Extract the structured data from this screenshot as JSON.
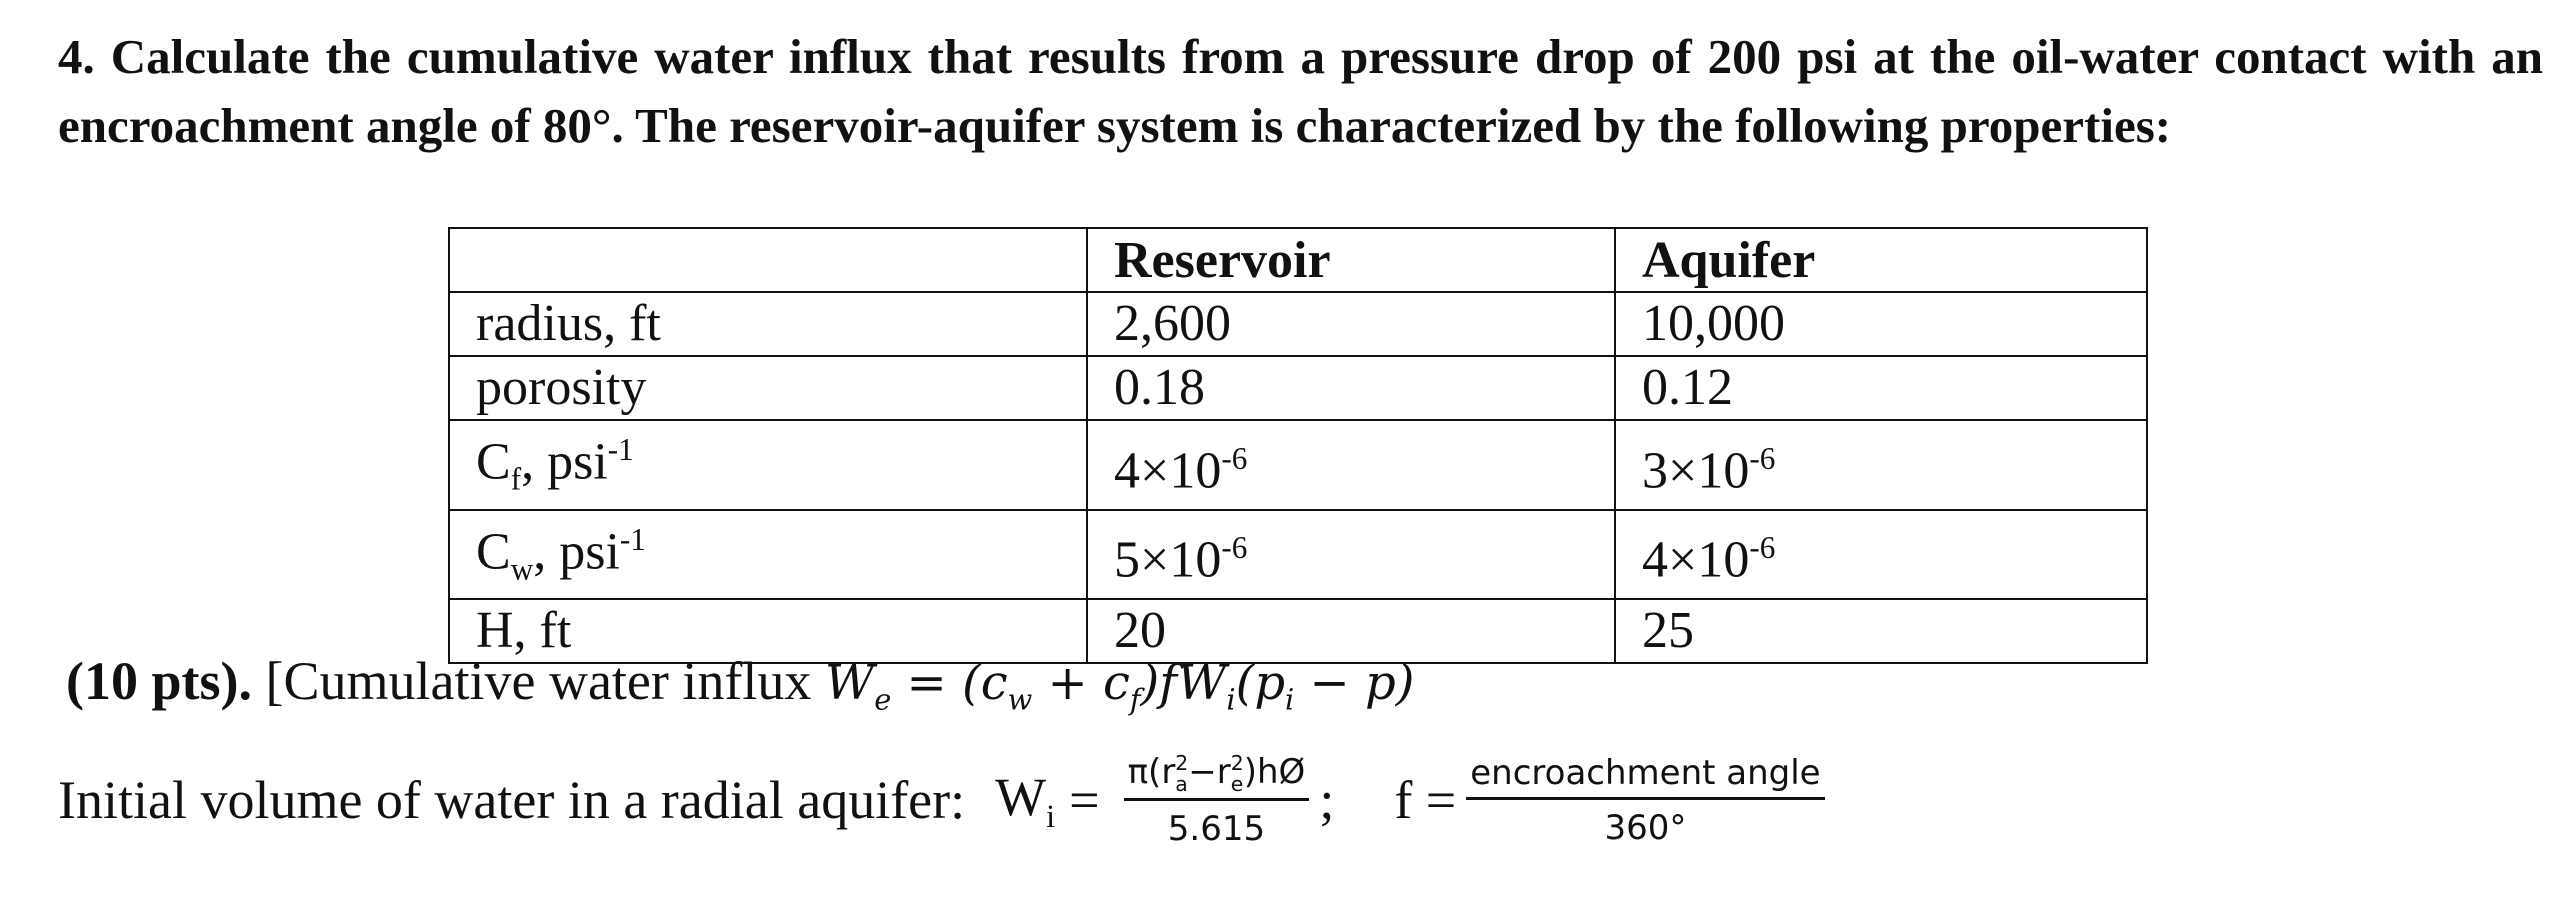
{
  "question": {
    "number": "4.",
    "text": "Calculate the cumulative water influx that results from a pressure drop of 200 psi at the oil-water contact with an encroachment angle of 80°. The reservoir-aquifer system is characterized by the following properties:"
  },
  "table": {
    "header": [
      "Reservoir",
      "Aquifer"
    ],
    "rows": [
      {
        "label": {
          "text": "radius, ft"
        },
        "cells": [
          {
            "base": "2,600"
          },
          {
            "base": "10,000"
          }
        ]
      },
      {
        "label": {
          "text": "porosity"
        },
        "cells": [
          {
            "base": "0.18"
          },
          {
            "base": "0.12"
          }
        ]
      },
      {
        "label": {
          "text": "C",
          "sub": "f",
          "after": ", psi",
          "sup": "-1"
        },
        "cells": [
          {
            "base": "4×10",
            "sup": "-6"
          },
          {
            "base": "3×10",
            "sup": "-6"
          }
        ]
      },
      {
        "label": {
          "text": "C",
          "sub": "w",
          "after": ", psi",
          "sup": "-1"
        },
        "cells": [
          {
            "base": "5×10",
            "sup": "-6"
          },
          {
            "base": "4×10",
            "sup": "-6"
          }
        ]
      },
      {
        "label": {
          "text": "H, ft"
        },
        "cells": [
          {
            "base": "20"
          },
          {
            "base": "25"
          }
        ]
      }
    ]
  },
  "hint": {
    "points": "(10 pts).",
    "lead": "[Cumulative water influx",
    "formula": [
      {
        "t": "W",
        "sub": "e"
      },
      {
        "t": " = (c",
        "sub": "w"
      },
      {
        "t": " + c",
        "sub": "f"
      },
      {
        "t": ")fW",
        "sub": "i"
      },
      {
        "t": "(p",
        "sub": "i"
      },
      {
        "t": " − p)"
      }
    ]
  },
  "volume": {
    "lead": "Initial volume of water in a radial aquifer:",
    "lhs": "W",
    "lhs_sub": "i",
    "eq": "=",
    "numerator": [
      {
        "t": "π(r",
        "sup": "2",
        "sub": "a"
      },
      {
        "t": "−r",
        "sup": "2",
        "sub": "e"
      },
      {
        "t": ")hØ"
      }
    ],
    "denominator": "5.615",
    "sep": ";",
    "f": "f =",
    "f_numerator": "encroachment angle",
    "f_denominator": "360°"
  }
}
